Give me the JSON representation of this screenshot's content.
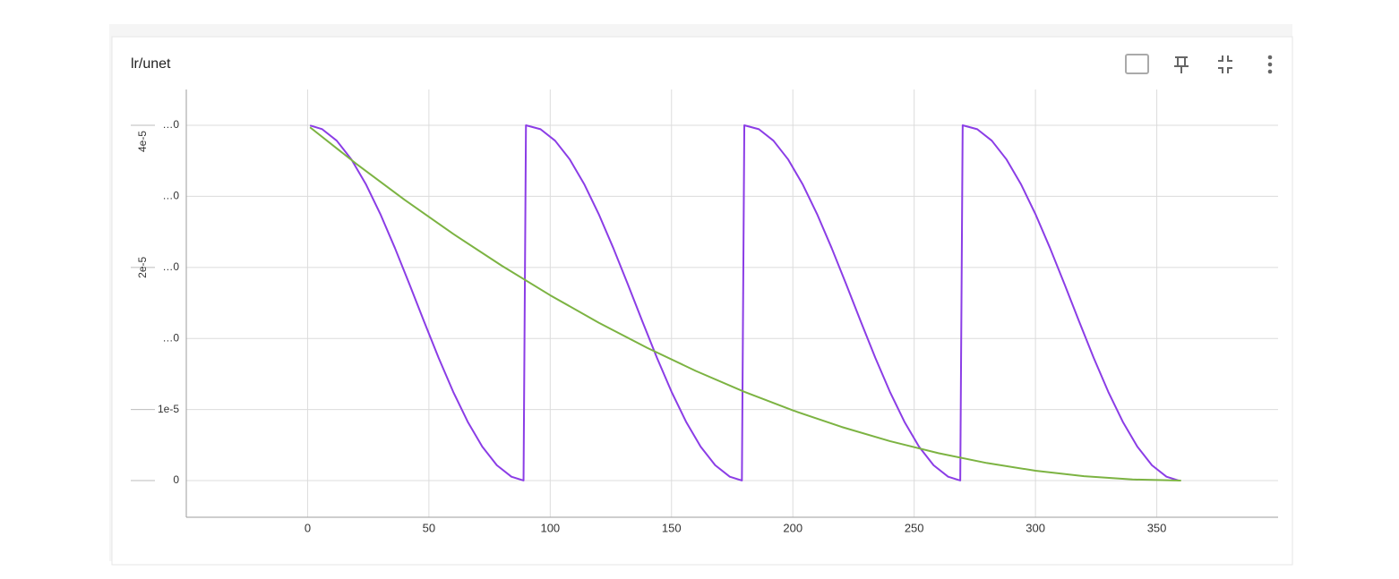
{
  "chart_data": {
    "type": "line",
    "title": "lr/unet",
    "xlim": [
      -50,
      400
    ],
    "xticks": [
      0,
      50,
      100,
      150,
      200,
      250,
      300,
      350
    ],
    "ylim": [
      -5.16e-06,
      5.504e-05
    ],
    "yticks": [
      0,
      {
        "value": 1e-05,
        "label": "1e-5"
      },
      {
        "value": 2e-05,
        "label": "…0"
      },
      {
        "value": 3e-05,
        "label": "…0"
      },
      {
        "value": 4e-05,
        "label": "…0"
      },
      {
        "value": 5e-05,
        "label": "…0"
      }
    ],
    "rotated_y_labels": [
      "4e-5",
      "2e-5"
    ],
    "grid": true,
    "series": [
      {
        "color": "#8b3de6",
        "x": [
          1,
          6,
          12,
          18,
          24,
          30,
          36,
          42,
          48,
          54,
          60,
          66,
          72,
          78,
          84,
          89,
          90,
          96,
          102,
          108,
          114,
          120,
          126,
          132,
          138,
          144,
          150,
          156,
          162,
          168,
          174,
          179,
          180,
          186,
          192,
          198,
          204,
          210,
          216,
          222,
          228,
          234,
          240,
          246,
          252,
          258,
          264,
          269,
          270,
          276,
          282,
          288,
          294,
          300,
          306,
          312,
          318,
          324,
          330,
          336,
          342,
          348,
          354,
          359
        ],
        "values": [
          4.998e-05,
          4.9454e-05,
          4.7839e-05,
          4.5225e-05,
          4.1728e-05,
          3.75e-05,
          3.2725e-05,
          2.7613e-05,
          2.2387e-05,
          1.7275e-05,
          1.25e-05,
          8.272e-06,
          4.775e-06,
          2.161e-06,
          5.46e-07,
          1.5e-08,
          5e-05,
          4.9454e-05,
          4.7839e-05,
          4.5225e-05,
          4.1728e-05,
          3.75e-05,
          3.2725e-05,
          2.7613e-05,
          2.2387e-05,
          1.7275e-05,
          1.25e-05,
          8.272e-06,
          4.775e-06,
          2.161e-06,
          5.46e-07,
          1.5e-08,
          5e-05,
          4.9454e-05,
          4.7839e-05,
          4.5225e-05,
          4.1728e-05,
          3.75e-05,
          3.2725e-05,
          2.7613e-05,
          2.2387e-05,
          1.7275e-05,
          1.25e-05,
          8.272e-06,
          4.775e-06,
          2.161e-06,
          5.46e-07,
          1.5e-08,
          5e-05,
          4.9454e-05,
          4.7839e-05,
          4.5225e-05,
          4.1728e-05,
          3.75e-05,
          3.2725e-05,
          2.7613e-05,
          2.2387e-05,
          1.7275e-05,
          1.25e-05,
          8.272e-06,
          4.775e-06,
          2.161e-06,
          5.46e-07,
          1.5e-08
        ]
      },
      {
        "color": "#7cb342",
        "x": [
          1,
          20,
          40,
          60,
          80,
          100,
          120,
          140,
          160,
          180,
          200,
          220,
          240,
          260,
          280,
          300,
          320,
          340,
          360
        ],
        "values": [
          4.9722e-05,
          4.4599e-05,
          3.9506e-05,
          3.4722e-05,
          3.0247e-05,
          2.608e-05,
          2.2222e-05,
          1.8673e-05,
          1.5432e-05,
          1.25e-05,
          9.877e-06,
          7.562e-06,
          5.556e-06,
          3.858e-06,
          2.469e-06,
          1.389e-06,
          6.17e-07,
          1.54e-07,
          0
        ]
      }
    ]
  }
}
